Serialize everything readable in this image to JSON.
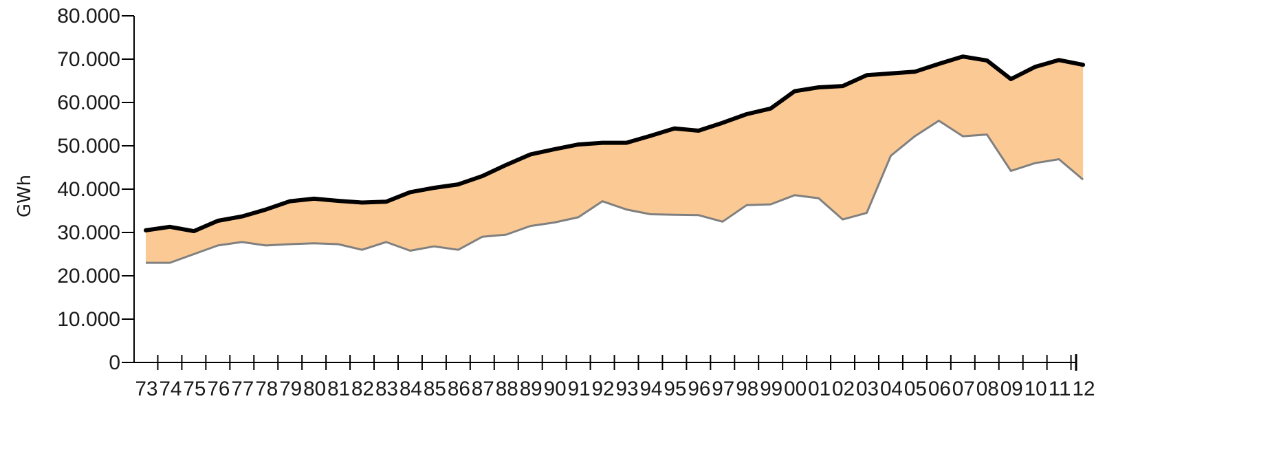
{
  "chart_data": {
    "type": "area",
    "title": "",
    "xlabel": "",
    "ylabel": "GWh",
    "ylim": [
      0,
      80000
    ],
    "yticks": [
      0,
      10000,
      20000,
      30000,
      40000,
      50000,
      60000,
      70000,
      80000
    ],
    "ytick_labels": [
      "0",
      "10.000",
      "20.000",
      "30.000",
      "40.000",
      "50.000",
      "60.000",
      "70.000",
      "80.000"
    ],
    "grid": false,
    "legend": "none",
    "categories": [
      "73",
      "74",
      "75",
      "76",
      "77",
      "78",
      "79",
      "80",
      "81",
      "82",
      "83",
      "84",
      "85",
      "86",
      "87",
      "88",
      "89",
      "90",
      "91",
      "92",
      "93",
      "94",
      "95",
      "96",
      "97",
      "98",
      "99",
      "00",
      "01",
      "02",
      "03",
      "04",
      "05",
      "06",
      "07",
      "08",
      "09",
      "10",
      "11",
      "12"
    ],
    "series": [
      {
        "role": "upper",
        "values": [
          30500,
          31300,
          30300,
          32700,
          33700,
          35300,
          37200,
          37800,
          37300,
          36900,
          37100,
          39300,
          40300,
          41100,
          43000,
          45600,
          48000,
          49200,
          50300,
          50700,
          50700,
          52300,
          54000,
          53500,
          55300,
          57300,
          58600,
          62600,
          63500,
          63800,
          66300,
          66700,
          67100,
          68900,
          70600,
          69700,
          65400,
          68200,
          69800,
          68700
        ],
        "color": "#000000"
      },
      {
        "role": "lower",
        "values": [
          23000,
          23000,
          25000,
          27000,
          27800,
          27000,
          27300,
          27500,
          27300,
          26000,
          27800,
          25800,
          26800,
          26000,
          29000,
          29500,
          31500,
          32300,
          33500,
          37200,
          35300,
          34200,
          34100,
          34000,
          32500,
          36300,
          36500,
          38600,
          37900,
          33000,
          34500,
          47700,
          52200,
          55800,
          52200,
          52600,
          44200,
          46000,
          46900,
          42200
        ],
        "color": "#808080"
      }
    ],
    "fill_color": "#fbc994"
  }
}
